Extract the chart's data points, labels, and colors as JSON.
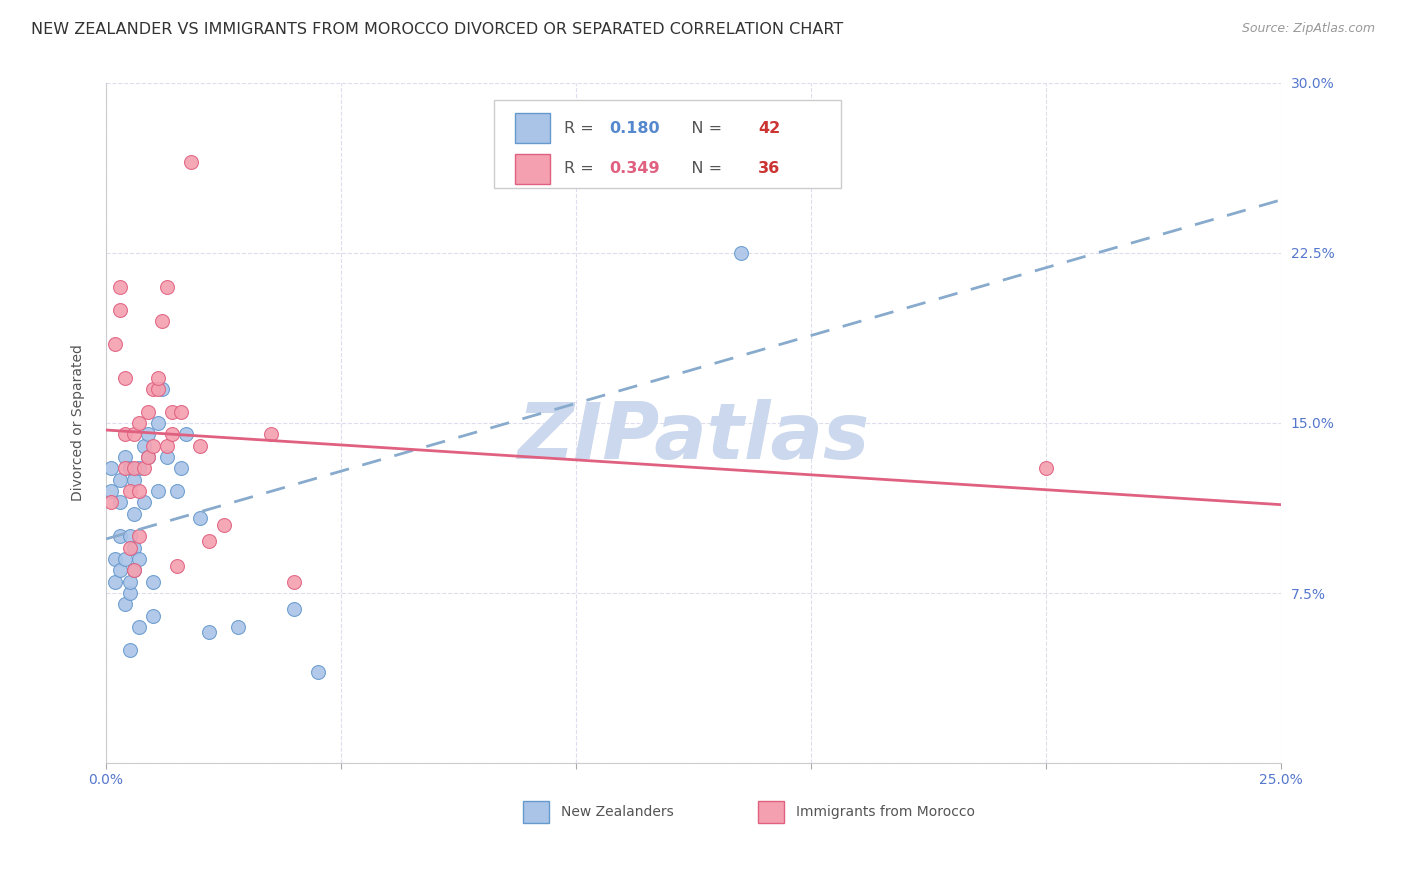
{
  "title": "NEW ZEALANDER VS IMMIGRANTS FROM MOROCCO DIVORCED OR SEPARATED CORRELATION CHART",
  "source": "Source: ZipAtlas.com",
  "ylabel": "Divorced or Separated",
  "xlim": [
    0.0,
    0.25
  ],
  "ylim": [
    0.0,
    0.3
  ],
  "xticks": [
    0.0,
    0.05,
    0.1,
    0.15,
    0.2,
    0.25
  ],
  "yticks": [
    0.0,
    0.075,
    0.15,
    0.225,
    0.3
  ],
  "xtick_labels": [
    "0.0%",
    "",
    "",
    "",
    "",
    "25.0%"
  ],
  "ytick_labels": [
    "",
    "7.5%",
    "15.0%",
    "22.5%",
    "30.0%"
  ],
  "nz_color": "#aac4e8",
  "nz_edge_color": "#6699cc",
  "morocco_color": "#f4a0b0",
  "morocco_edge_color": "#e06080",
  "nz_line_color": "#88aacc",
  "morocco_line_color": "#e06080",
  "watermark": "ZIPatlas",
  "watermark_color": "#ccd8ee",
  "legend_nz_R": "0.180",
  "legend_nz_N": "42",
  "legend_morocco_R": "0.349",
  "legend_morocco_N": "36",
  "nz_R_color": "#5588cc",
  "nz_N_color": "#cc3333",
  "morocco_R_color": "#e06080",
  "morocco_N_color": "#cc3333",
  "nz_scatter_x": [
    0.001,
    0.001,
    0.002,
    0.002,
    0.003,
    0.003,
    0.003,
    0.003,
    0.004,
    0.004,
    0.004,
    0.005,
    0.005,
    0.005,
    0.005,
    0.005,
    0.006,
    0.006,
    0.006,
    0.006,
    0.007,
    0.007,
    0.007,
    0.008,
    0.008,
    0.009,
    0.009,
    0.01,
    0.01,
    0.011,
    0.011,
    0.012,
    0.013,
    0.015,
    0.016,
    0.017,
    0.02,
    0.022,
    0.028,
    0.04,
    0.045,
    0.135
  ],
  "nz_scatter_y": [
    0.13,
    0.12,
    0.08,
    0.09,
    0.085,
    0.1,
    0.115,
    0.125,
    0.07,
    0.09,
    0.135,
    0.05,
    0.075,
    0.08,
    0.1,
    0.13,
    0.085,
    0.095,
    0.11,
    0.125,
    0.06,
    0.09,
    0.13,
    0.115,
    0.14,
    0.135,
    0.145,
    0.065,
    0.08,
    0.12,
    0.15,
    0.165,
    0.135,
    0.12,
    0.13,
    0.145,
    0.108,
    0.058,
    0.06,
    0.068,
    0.04,
    0.225
  ],
  "morocco_scatter_x": [
    0.001,
    0.002,
    0.003,
    0.003,
    0.004,
    0.004,
    0.004,
    0.005,
    0.005,
    0.006,
    0.006,
    0.006,
    0.007,
    0.007,
    0.007,
    0.008,
    0.009,
    0.009,
    0.01,
    0.01,
    0.011,
    0.011,
    0.012,
    0.013,
    0.013,
    0.014,
    0.014,
    0.015,
    0.016,
    0.018,
    0.02,
    0.022,
    0.025,
    0.035,
    0.04,
    0.2
  ],
  "morocco_scatter_y": [
    0.115,
    0.185,
    0.2,
    0.21,
    0.13,
    0.145,
    0.17,
    0.095,
    0.12,
    0.085,
    0.13,
    0.145,
    0.1,
    0.12,
    0.15,
    0.13,
    0.135,
    0.155,
    0.14,
    0.165,
    0.165,
    0.17,
    0.195,
    0.14,
    0.21,
    0.145,
    0.155,
    0.087,
    0.155,
    0.265,
    0.14,
    0.098,
    0.105,
    0.145,
    0.08,
    0.13
  ],
  "background_color": "#ffffff",
  "grid_color": "#ddddee",
  "title_fontsize": 11.5,
  "label_fontsize": 10,
  "tick_fontsize": 10
}
